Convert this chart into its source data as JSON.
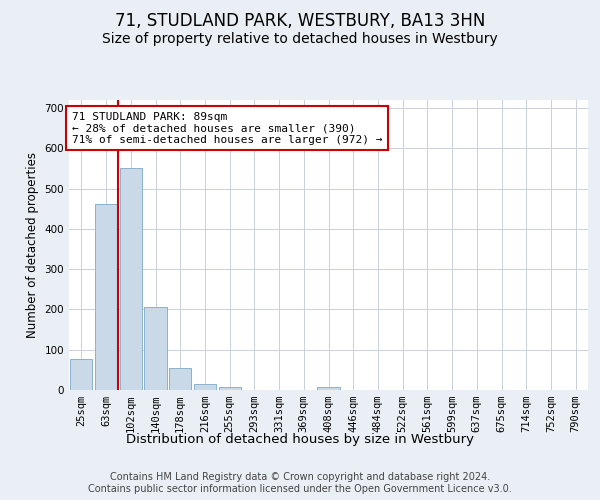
{
  "title": "71, STUDLAND PARK, WESTBURY, BA13 3HN",
  "subtitle": "Size of property relative to detached houses in Westbury",
  "xlabel": "Distribution of detached houses by size in Westbury",
  "ylabel": "Number of detached properties",
  "categories": [
    "25sqm",
    "63sqm",
    "102sqm",
    "140sqm",
    "178sqm",
    "216sqm",
    "255sqm",
    "293sqm",
    "331sqm",
    "369sqm",
    "408sqm",
    "446sqm",
    "484sqm",
    "522sqm",
    "561sqm",
    "599sqm",
    "637sqm",
    "675sqm",
    "714sqm",
    "752sqm",
    "790sqm"
  ],
  "values": [
    78,
    462,
    550,
    205,
    55,
    15,
    8,
    0,
    0,
    0,
    8,
    0,
    0,
    0,
    0,
    0,
    0,
    0,
    0,
    0,
    0
  ],
  "bar_color": "#c9d9e8",
  "bar_edge_color": "#7ea9c8",
  "vline_pos": 1.5,
  "vline_color": "#cc0000",
  "annotation_text": "71 STUDLAND PARK: 89sqm\n← 28% of detached houses are smaller (390)\n71% of semi-detached houses are larger (972) →",
  "annotation_box_color": "#ffffff",
  "annotation_box_edge_color": "#cc0000",
  "ylim": [
    0,
    720
  ],
  "yticks": [
    0,
    100,
    200,
    300,
    400,
    500,
    600,
    700
  ],
  "bg_color": "#eaeff5",
  "plot_bg_color": "#ffffff",
  "grid_color": "#c8d0dc",
  "footer": "Contains HM Land Registry data © Crown copyright and database right 2024.\nContains public sector information licensed under the Open Government Licence v3.0.",
  "title_fontsize": 12,
  "subtitle_fontsize": 10,
  "xlabel_fontsize": 9.5,
  "ylabel_fontsize": 8.5,
  "tick_fontsize": 7.5,
  "footer_fontsize": 7,
  "annotation_fontsize": 8
}
